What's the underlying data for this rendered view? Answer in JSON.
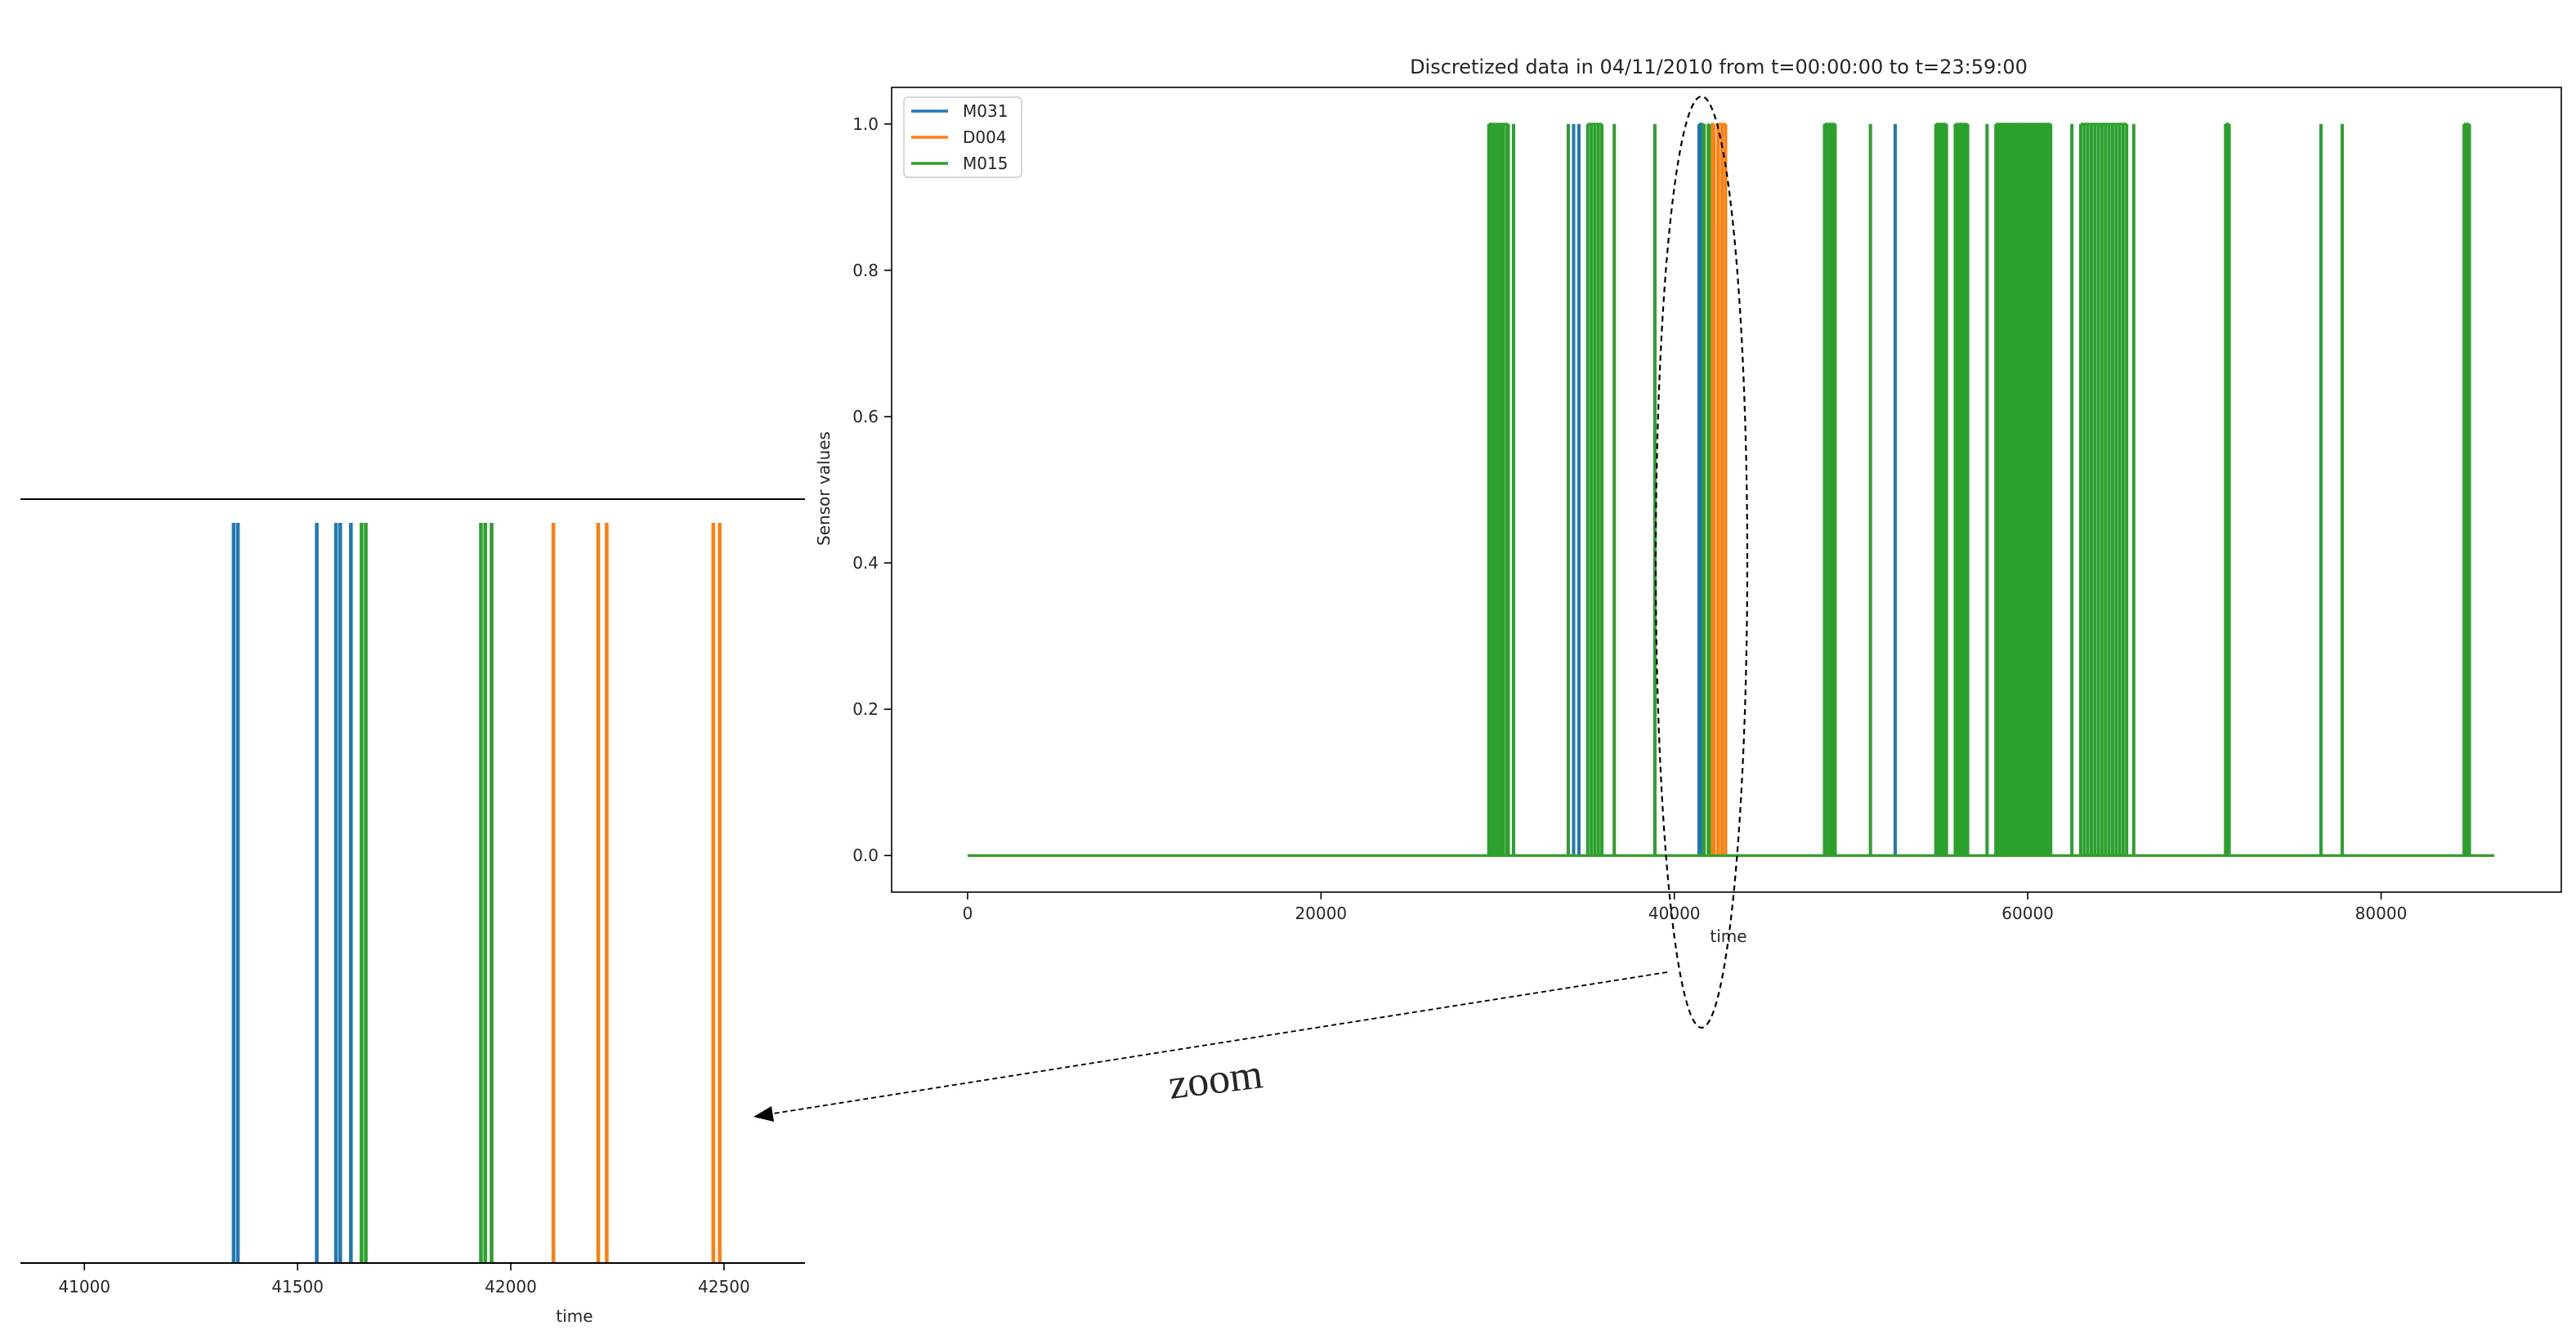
{
  "chart_data": [
    {
      "type": "line",
      "title": "Discretized data in 04/11/2010 from t=00:00:00 to t=23:59:00",
      "xlabel": "time",
      "ylabel": "Sensor values",
      "xlim": [
        -4300,
        90200
      ],
      "ylim": [
        -0.05,
        1.05
      ],
      "xticks": [
        0,
        20000,
        40000,
        60000,
        80000
      ],
      "xtick_labels": [
        "0",
        "20000",
        "40000",
        "60000",
        "80000"
      ],
      "yticks": [
        0.0,
        0.2,
        0.4,
        0.6,
        0.8,
        1.0
      ],
      "ytick_labels": [
        "0.0",
        "0.2",
        "0.4",
        "0.6",
        "0.8",
        "1.0"
      ],
      "x_range": [
        0,
        86400
      ],
      "grid": false,
      "legend_position": "top-left",
      "series": [
        {
          "name": "M031",
          "color": "#1f77b4",
          "pulse_at": [
            34300,
            34600,
            41400,
            41560,
            41590,
            41620,
            52500
          ]
        },
        {
          "name": "D004",
          "color": "#ff7f0e",
          "pulse_at": [
            42100,
            42200,
            42240,
            42470,
            42490,
            42700,
            42900
          ]
        },
        {
          "name": "M015",
          "color": "#2ca02c",
          "pulse_at": [
            29500,
            29600,
            29700,
            29800,
            29900,
            30000,
            30100,
            30200,
            30300,
            30500,
            30600,
            30900,
            34000,
            35100,
            35300,
            35500,
            35700,
            35900,
            36600,
            38900,
            41650,
            41680,
            41920,
            41950,
            41970,
            48500,
            48600,
            48700,
            48800,
            48900,
            49000,
            49100,
            51100,
            54800,
            54900,
            55000,
            55100,
            55200,
            55300,
            55400,
            55900,
            56000,
            56100,
            56200,
            56300,
            56400,
            56500,
            56600,
            57700,
            58200,
            58300,
            58400,
            58500,
            58600,
            58700,
            58800,
            58900,
            59000,
            59100,
            59200,
            59300,
            59400,
            59500,
            59600,
            59700,
            59800,
            59900,
            60000,
            60100,
            60200,
            60300,
            60400,
            60500,
            60600,
            60700,
            60800,
            60900,
            61000,
            61100,
            61200,
            61300,
            62500,
            63000,
            63200,
            63400,
            63600,
            63800,
            64000,
            64200,
            64400,
            64600,
            64800,
            65000,
            65200,
            65400,
            65600,
            66000,
            71200,
            71300,
            71400,
            76600,
            77800,
            84700,
            84800,
            84900,
            85000
          ]
        }
      ]
    },
    {
      "type": "line",
      "xlabel": "time",
      "xlim": [
        40850,
        42690
      ],
      "xticks": [
        41000,
        41500,
        42000,
        42500
      ],
      "xtick_labels": [
        "41000",
        "41500",
        "42000",
        "42500"
      ],
      "grid": false,
      "series": [
        {
          "name": "M031",
          "color": "#1f77b4",
          "pulse_at": [
            41350,
            41360,
            41545,
            41590,
            41600,
            41625
          ]
        },
        {
          "name": "M015",
          "color": "#2ca02c",
          "pulse_at": [
            41650,
            41660,
            41930,
            41940,
            41955
          ]
        },
        {
          "name": "D004",
          "color": "#ff7f0e",
          "pulse_at": [
            42100,
            42205,
            42225,
            42475,
            42490
          ]
        }
      ]
    }
  ],
  "annotation": {
    "label": "zoom"
  }
}
